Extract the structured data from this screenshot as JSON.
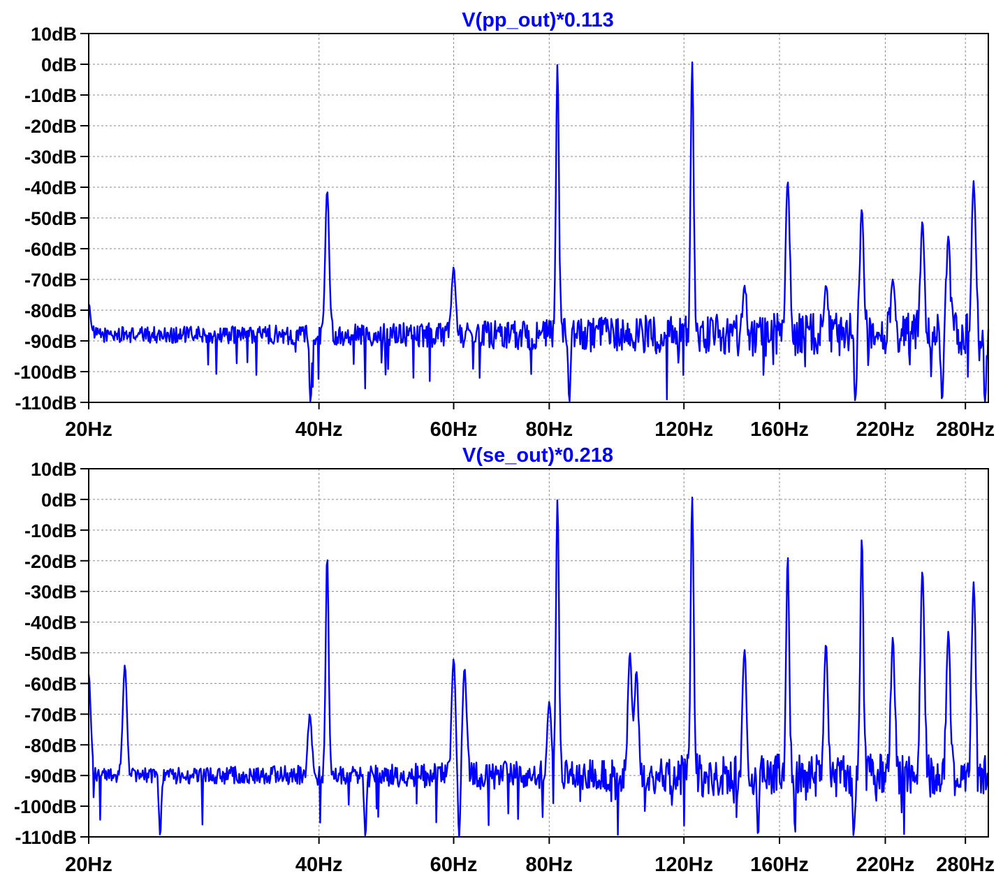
{
  "chart_data": [
    {
      "type": "line",
      "title": "V(pp_out)*0.113",
      "xscale": "log",
      "xlim": [
        20,
        300
      ],
      "ylim": [
        -110,
        10
      ],
      "x_ticks": [
        20,
        40,
        60,
        80,
        120,
        160,
        220,
        280
      ],
      "x_tick_labels": [
        "20Hz",
        "40Hz",
        "60Hz",
        "80Hz",
        "120Hz",
        "160Hz",
        "220Hz",
        "280Hz"
      ],
      "y_ticks": [
        10,
        0,
        -10,
        -20,
        -30,
        -40,
        -50,
        -60,
        -70,
        -80,
        -90,
        -100,
        -110
      ],
      "y_tick_labels": [
        "10dB",
        "0dB",
        "-10dB",
        "-20dB",
        "-30dB",
        "-40dB",
        "-50dB",
        "-60dB",
        "-70dB",
        "-80dB",
        "-90dB",
        "-100dB",
        "-110dB"
      ],
      "grid": true,
      "color": "#0000ff",
      "floor": -88,
      "peaks": [
        {
          "x": 20.0,
          "y": -78
        },
        {
          "x": 41.0,
          "y": -41
        },
        {
          "x": 60.0,
          "y": -66
        },
        {
          "x": 82.0,
          "y": 0
        },
        {
          "x": 123.0,
          "y": 1
        },
        {
          "x": 144.0,
          "y": -72
        },
        {
          "x": 164.0,
          "y": -38
        },
        {
          "x": 184.0,
          "y": -72
        },
        {
          "x": 205.0,
          "y": -47
        },
        {
          "x": 225.0,
          "y": -70
        },
        {
          "x": 246.0,
          "y": -51
        },
        {
          "x": 266.0,
          "y": -56
        },
        {
          "x": 287.0,
          "y": -38
        }
      ],
      "dips": [
        {
          "x": 39.0,
          "y": -110
        },
        {
          "x": 85.0,
          "y": -110
        },
        {
          "x": 201.0,
          "y": -110
        },
        {
          "x": 261.0,
          "y": -110
        },
        {
          "x": 297.0,
          "y": -110
        }
      ]
    },
    {
      "type": "line",
      "title": "V(se_out)*0.218",
      "xscale": "log",
      "xlim": [
        20,
        300
      ],
      "ylim": [
        -110,
        10
      ],
      "x_ticks": [
        20,
        40,
        60,
        80,
        120,
        160,
        220,
        280
      ],
      "x_tick_labels": [
        "20Hz",
        "40Hz",
        "60Hz",
        "80Hz",
        "120Hz",
        "160Hz",
        "220Hz",
        "280Hz"
      ],
      "y_ticks": [
        10,
        0,
        -10,
        -20,
        -30,
        -40,
        -50,
        -60,
        -70,
        -80,
        -90,
        -100,
        -110
      ],
      "y_tick_labels": [
        "10dB",
        "0dB",
        "-10dB",
        "-20dB",
        "-30dB",
        "-40dB",
        "-50dB",
        "-60dB",
        "-70dB",
        "-80dB",
        "-90dB",
        "-100dB",
        "-110dB"
      ],
      "grid": true,
      "color": "#0000ff",
      "floor": -90,
      "peaks": [
        {
          "x": 20.0,
          "y": -57
        },
        {
          "x": 22.3,
          "y": -54
        },
        {
          "x": 38.9,
          "y": -70
        },
        {
          "x": 41.0,
          "y": -18
        },
        {
          "x": 60.0,
          "y": -52
        },
        {
          "x": 62.0,
          "y": -55
        },
        {
          "x": 80.0,
          "y": -66
        },
        {
          "x": 82.0,
          "y": 0
        },
        {
          "x": 102.0,
          "y": -50
        },
        {
          "x": 104.0,
          "y": -56
        },
        {
          "x": 123.0,
          "y": 1
        },
        {
          "x": 144.0,
          "y": -49
        },
        {
          "x": 164.0,
          "y": -18
        },
        {
          "x": 184.0,
          "y": -47
        },
        {
          "x": 205.0,
          "y": -12
        },
        {
          "x": 225.0,
          "y": -45
        },
        {
          "x": 246.0,
          "y": -23
        },
        {
          "x": 266.0,
          "y": -43
        },
        {
          "x": 287.0,
          "y": -27
        }
      ],
      "dips": [
        {
          "x": 24.8,
          "y": -110
        },
        {
          "x": 46.0,
          "y": -110
        },
        {
          "x": 61.0,
          "y": -110
        },
        {
          "x": 150.0,
          "y": -110
        },
        {
          "x": 200.0,
          "y": -110
        }
      ]
    }
  ]
}
